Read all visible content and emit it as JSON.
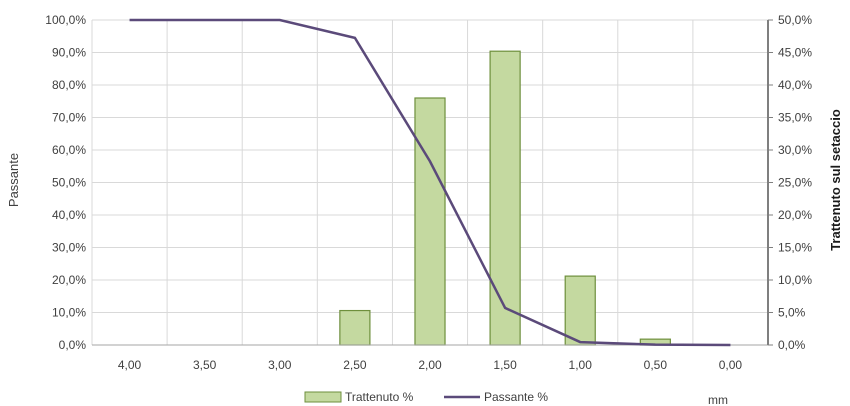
{
  "chart_data": {
    "type": "bar+line",
    "x_unit_label": "mm",
    "categories": [
      "4,00",
      "3,50",
      "3,00",
      "2,50",
      "2,00",
      "1,50",
      "1,00",
      "0,50",
      "0,00"
    ],
    "series": [
      {
        "name": "Trattenuto %",
        "type": "bar",
        "axis": "right",
        "color": "#c4d9a0",
        "stroke": "#6e8f3c",
        "values": [
          0,
          0,
          0,
          5.3,
          38.0,
          45.2,
          10.6,
          0.9,
          0
        ]
      },
      {
        "name": "Passante %",
        "type": "line",
        "axis": "left",
        "color": "#5b4a7a",
        "values": [
          100.0,
          100.0,
          100.0,
          94.5,
          56.5,
          11.4,
          0.9,
          0.1,
          0.0
        ]
      }
    ],
    "y_left": {
      "label": "Passante",
      "ylim": [
        0,
        100
      ],
      "ticks": [
        "0,0%",
        "10,0%",
        "20,0%",
        "30,0%",
        "40,0%",
        "50,0%",
        "60,0%",
        "70,0%",
        "80,0%",
        "90,0%",
        "100,0%"
      ]
    },
    "y_right": {
      "label": "Trattenuto sul setaccio",
      "ylim": [
        0,
        50
      ],
      "ticks": [
        "0,0%",
        "5,0%",
        "10,0%",
        "15,0%",
        "20,0%",
        "25,0%",
        "30,0%",
        "35,0%",
        "40,0%",
        "45,0%",
        "50,0%"
      ]
    },
    "grid": true,
    "legend_position": "bottom"
  }
}
